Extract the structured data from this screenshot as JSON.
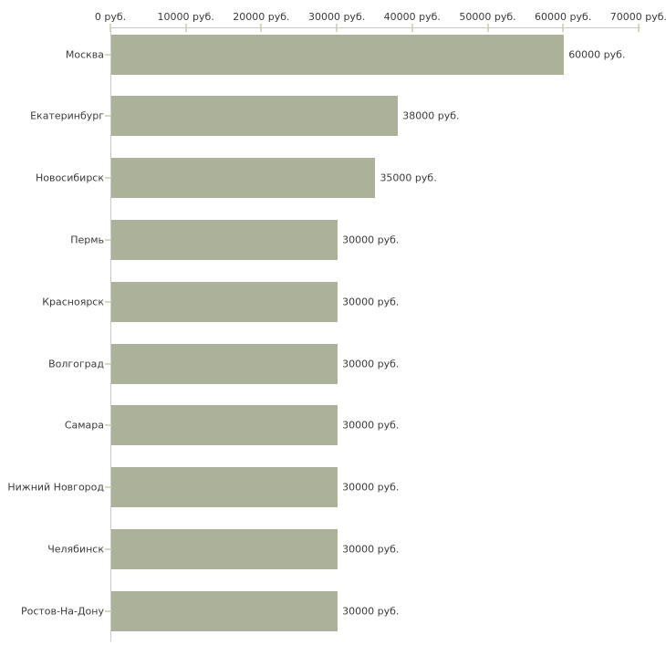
{
  "chart_data": {
    "type": "bar",
    "orientation": "horizontal",
    "title": "",
    "xlabel": "",
    "ylabel": "",
    "unit": "руб.",
    "categories": [
      "Москва",
      "Екатеринбург",
      "Новосибирск",
      "Пермь",
      "Красноярск",
      "Волгоград",
      "Самара",
      "Нижний Новгород",
      "Челябинск",
      "Ростов-На-Дону"
    ],
    "values": [
      60000,
      38000,
      35000,
      30000,
      30000,
      30000,
      30000,
      30000,
      30000,
      30000
    ],
    "value_labels": [
      "60000 руб.",
      "38000 руб.",
      "35000 руб.",
      "30000 руб.",
      "30000 руб.",
      "30000 руб.",
      "30000 руб.",
      "30000 руб.",
      "30000 руб.",
      "30000 руб."
    ],
    "x_axis": {
      "position": "top",
      "min": 0,
      "max": 70000,
      "tick_values": [
        0,
        10000,
        20000,
        30000,
        40000,
        50000,
        60000,
        70000
      ],
      "tick_labels": [
        "0 руб.",
        "10000 руб.",
        "20000 руб.",
        "30000 руб.",
        "40000 руб.",
        "50000 руб.",
        "60000 руб.",
        "70000 руб."
      ]
    },
    "grid": false,
    "legend": false,
    "colors": {
      "bar": "#abb299",
      "axis_line": "#c9c9c9",
      "tick_mark": "#d8d9ba",
      "text": "#3b3b3b",
      "background": "#ffffff"
    }
  }
}
